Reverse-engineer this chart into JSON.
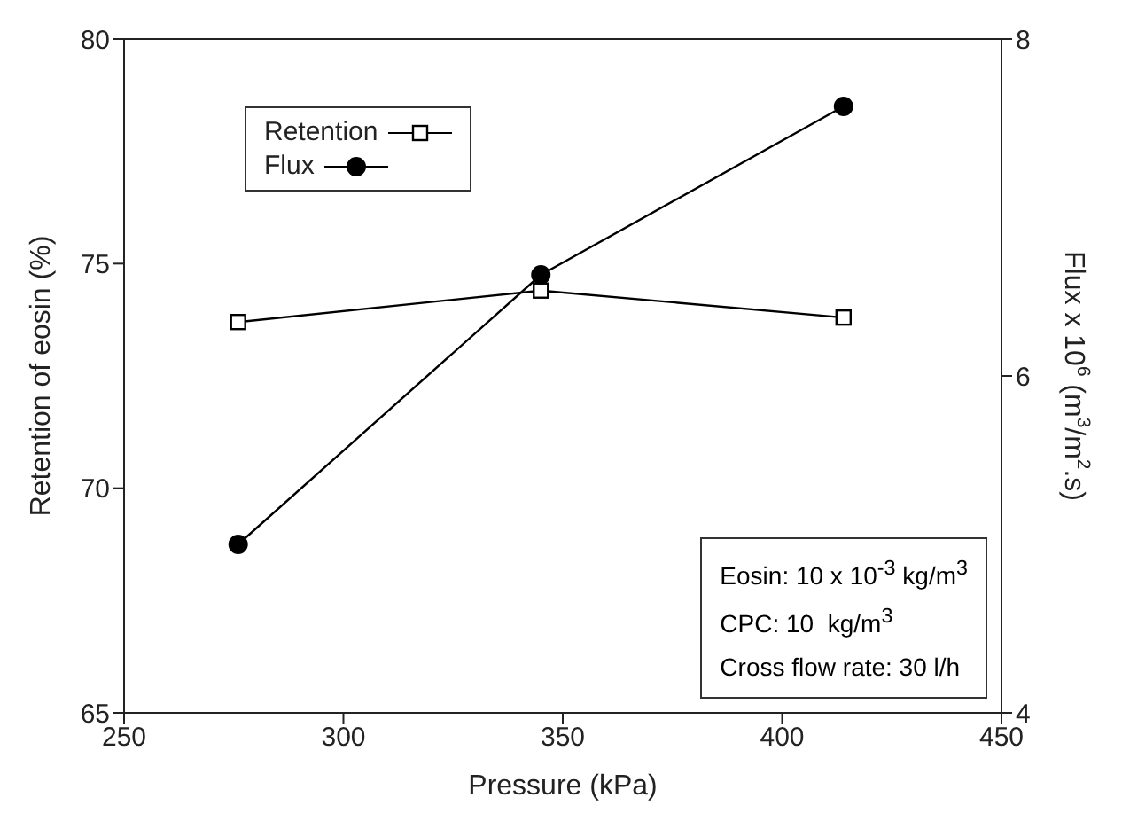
{
  "chart_data": {
    "type": "line",
    "xlabel": "Pressure (kPa)",
    "ylabel": "Retention of eosin (%)",
    "y2label": "Flux x 10$^{6}$ (m$^{3}$/m$^{2}$.s)",
    "x": [
      276,
      345,
      414
    ],
    "series": [
      {
        "name": "Retention",
        "color": "#000000",
        "marker": "square",
        "values": [
          73.7,
          74.4,
          73.8
        ]
      },
      {
        "name": "Flux",
        "color": "#000000",
        "marker": "circle",
        "axis": "y2",
        "values": [
          5.0,
          6.6,
          7.6
        ]
      }
    ],
    "xlim": [
      250,
      450
    ],
    "xticks": [
      250,
      300,
      350,
      400,
      450
    ],
    "ylim": [
      65,
      80
    ],
    "yticks": [
      65,
      70,
      75,
      80
    ],
    "y2lim": [
      4,
      8
    ],
    "y2ticks": [
      4,
      6,
      8
    ],
    "legend": "top left",
    "grid": false,
    "line_style": "solid",
    "annotations": [
      "Eosin: 10 x 10$^{-3}$ kg/m$^{3}$",
      "CPC: 10  kg/m$^{3}$",
      "Cross flow rate: 30 l/h"
    ]
  }
}
